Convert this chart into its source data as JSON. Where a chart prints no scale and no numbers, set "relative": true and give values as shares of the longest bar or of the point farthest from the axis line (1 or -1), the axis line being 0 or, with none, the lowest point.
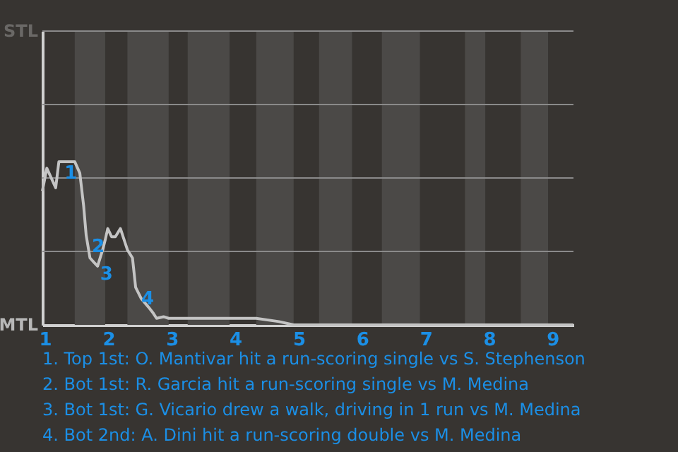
{
  "chart_data": {
    "type": "line",
    "relative": true,
    "xlim": [
      0.96,
      9.33
    ],
    "xticks": [
      1,
      2,
      3,
      4,
      5,
      6,
      7,
      8,
      9
    ],
    "ref_lines": [
      {
        "axis": "y",
        "value": 0.45,
        "color": "#8a8a8a"
      },
      {
        "axis": "y",
        "value": 0.9,
        "color": "#8a8a8a"
      },
      {
        "axis": "y",
        "value": 1.35,
        "color": "#8a8a8a"
      },
      {
        "axis": "y",
        "value": 1.8,
        "color": "#8a8a8a"
      }
    ],
    "marker": "none",
    "line_style": "solid",
    "series": [
      {
        "color": "#c4c4c4",
        "x": [
          0.96,
          1.03,
          1.17,
          1.22,
          1.47,
          1.55,
          1.61,
          1.65,
          1.71,
          1.78,
          1.83,
          1.91,
          1.95,
          1.99,
          2.05,
          2.11,
          2.19,
          2.3,
          2.38,
          2.43,
          2.52,
          2.63,
          2.71,
          2.76,
          2.87,
          2.95,
          4.08,
          4.33,
          4.69,
          4.92,
          9.33
        ],
        "values": [
          0.82,
          0.96,
          0.84,
          1,
          1,
          0.93,
          0.73,
          0.55,
          0.41,
          0.38,
          0.36,
          0.46,
          0.52,
          0.59,
          0.54,
          0.54,
          0.59,
          0.46,
          0.41,
          0.23,
          0.16,
          0.11,
          0.07,
          0.04,
          0.05,
          0.04,
          0.04,
          0.04,
          0.02,
          0,
          0
        ]
      }
    ],
    "bands": [
      {
        "axis": "x",
        "from": 1.47,
        "to": 1.95,
        "color": "#4b4947"
      },
      {
        "axis": "x",
        "from": 2.3,
        "to": 2.95,
        "color": "#4b4947"
      },
      {
        "axis": "x",
        "from": 3.25,
        "to": 3.91,
        "color": "#4b4947"
      },
      {
        "axis": "x",
        "from": 4.33,
        "to": 4.92,
        "color": "#4b4947"
      },
      {
        "axis": "x",
        "from": 5.32,
        "to": 5.84,
        "color": "#4b4947"
      },
      {
        "axis": "x",
        "from": 6.31,
        "to": 6.91,
        "color": "#4b4947"
      },
      {
        "axis": "x",
        "from": 7.62,
        "to": 7.94,
        "color": "#4b4947"
      },
      {
        "axis": "x",
        "from": 8.5,
        "to": 8.93,
        "color": "#4b4947"
      }
    ],
    "annotations": [
      {
        "text": "1",
        "x": 1.22,
        "y": 1
      },
      {
        "text": "2",
        "x": 1.65,
        "y": 0.55
      },
      {
        "text": "3",
        "x": 1.78,
        "y": 0.38
      },
      {
        "text": "4",
        "x": 2.43,
        "y": 0.23
      },
      "STL",
      "MTL",
      "1. Top 1st: O. Mantivar hit a run-scoring single vs S. Stephenson",
      "2. Bot 1st: R. Garcia hit a run-scoring single vs M. Medina",
      "3. Bot 1st: G. Vicario drew a walk, driving in 1 run vs M. Medina",
      "4. Bot 2nd: A. Dini hit a run-scoring double vs M. Medina"
    ]
  }
}
